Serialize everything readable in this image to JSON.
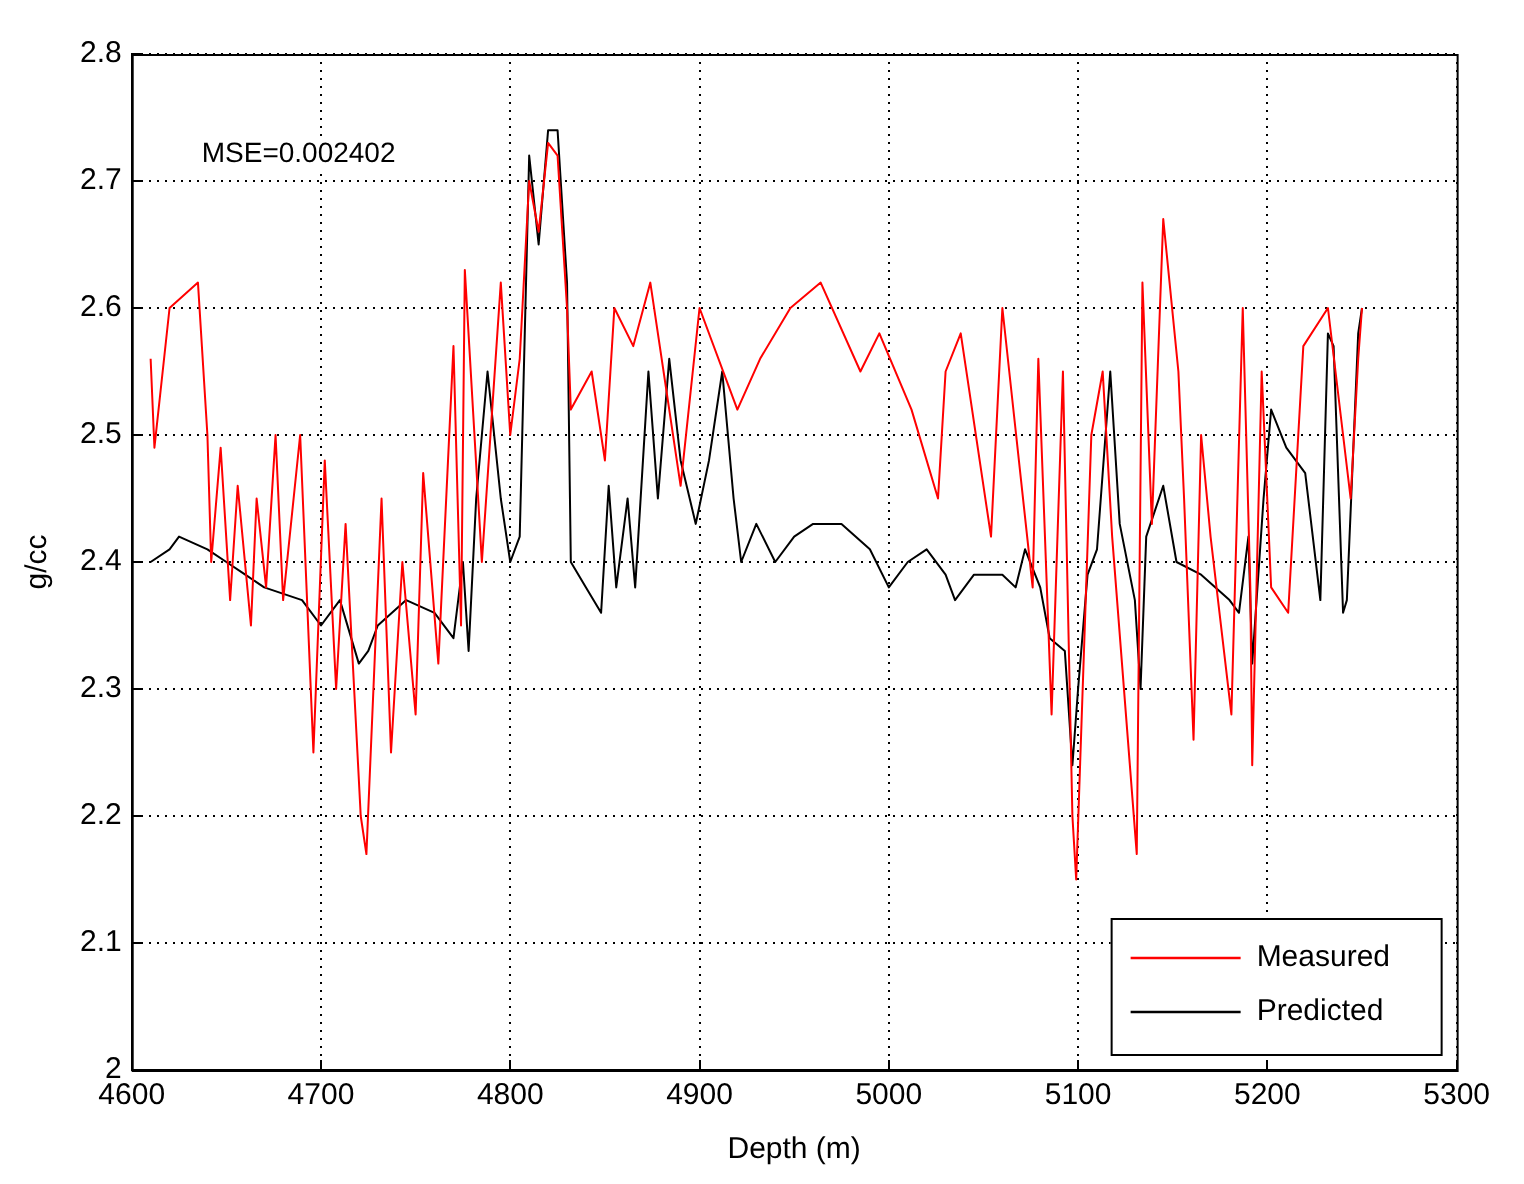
{
  "chart_data": {
    "type": "line",
    "xlabel": "Depth (m)",
    "ylabel": "g/cc",
    "annotations": [
      "MSE=0.002402"
    ],
    "xlim": [
      4600,
      5300
    ],
    "xticks": [
      4600,
      4700,
      4800,
      4900,
      5000,
      5100,
      5200,
      5300
    ],
    "ylim": [
      2,
      2.8
    ],
    "yticks": [
      2,
      2.1,
      2.2,
      2.3,
      2.4,
      2.5,
      2.6,
      2.7,
      2.8
    ],
    "grid": true,
    "legend": "bottom right",
    "line_style": "solid",
    "marker": "none",
    "series": [
      {
        "name": "Measured",
        "color": "#ff0000",
        "x": [
          4610,
          4612,
          4620,
          4635,
          4640,
          4642,
          4647,
          4652,
          4656,
          4663,
          4666,
          4671,
          4676,
          4680,
          4689,
          4696,
          4702,
          4708,
          4713,
          4721,
          4724,
          4732,
          4737,
          4743,
          4750,
          4754,
          4762,
          4770,
          4774,
          4776,
          4785,
          4795,
          4800,
          4805,
          4810,
          4815,
          4820,
          4825,
          4830,
          4832,
          4843,
          4850,
          4855,
          4865,
          4874,
          4890,
          4900,
          4920,
          4932,
          4948,
          4964,
          4985,
          4995,
          5012,
          5026,
          5030,
          5038,
          5054,
          5060,
          5076,
          5079,
          5086,
          5092,
          5097,
          5099,
          5107,
          5113,
          5118,
          5131,
          5134,
          5139,
          5145,
          5153,
          5156,
          5161,
          5165,
          5170,
          5181,
          5187,
          5191,
          5192,
          5197,
          5202,
          5211,
          5219,
          5232,
          5240,
          5244,
          5248,
          5250
        ],
        "values": [
          2.56,
          2.49,
          2.6,
          2.62,
          2.5,
          2.4,
          2.49,
          2.37,
          2.46,
          2.35,
          2.45,
          2.38,
          2.5,
          2.37,
          2.5,
          2.25,
          2.48,
          2.3,
          2.43,
          2.2,
          2.17,
          2.45,
          2.25,
          2.4,
          2.28,
          2.47,
          2.32,
          2.57,
          2.35,
          2.63,
          2.4,
          2.62,
          2.5,
          2.56,
          2.7,
          2.66,
          2.73,
          2.72,
          2.6,
          2.52,
          2.55,
          2.48,
          2.6,
          2.57,
          2.62,
          2.46,
          2.6,
          2.52,
          2.56,
          2.6,
          2.62,
          2.55,
          2.58,
          2.52,
          2.45,
          2.55,
          2.58,
          2.42,
          2.6,
          2.38,
          2.56,
          2.28,
          2.55,
          2.2,
          2.15,
          2.5,
          2.55,
          2.42,
          2.17,
          2.62,
          2.43,
          2.67,
          2.55,
          2.45,
          2.26,
          2.5,
          2.42,
          2.28,
          2.6,
          2.38,
          2.24,
          2.55,
          2.38,
          2.36,
          2.57,
          2.6,
          2.5,
          2.45,
          2.56,
          2.6
        ]
      },
      {
        "name": "Predicted",
        "color": "#000000",
        "x": [
          4610,
          4620,
          4625,
          4640,
          4650,
          4660,
          4670,
          4690,
          4700,
          4710,
          4720,
          4725,
          4730,
          4745,
          4760,
          4770,
          4775,
          4778,
          4782,
          4788,
          4795,
          4800,
          4805,
          4810,
          4815,
          4820,
          4825,
          4830,
          4832,
          4840,
          4848,
          4852,
          4856,
          4862,
          4866,
          4873,
          4878,
          4884,
          4890,
          4898,
          4905,
          4912,
          4918,
          4922,
          4930,
          4940,
          4950,
          4960,
          4975,
          4990,
          5000,
          5010,
          5020,
          5030,
          5035,
          5045,
          5060,
          5067,
          5072,
          5080,
          5085,
          5093,
          5097,
          5100,
          5105,
          5110,
          5117,
          5122,
          5130,
          5133,
          5136,
          5145,
          5152,
          5165,
          5180,
          5185,
          5190,
          5192,
          5198,
          5202,
          5210,
          5220,
          5228,
          5232,
          5235,
          5240,
          5242,
          5248,
          5250
        ],
        "values": [
          2.4,
          2.41,
          2.42,
          2.41,
          2.4,
          2.39,
          2.38,
          2.37,
          2.35,
          2.37,
          2.32,
          2.33,
          2.35,
          2.37,
          2.36,
          2.34,
          2.4,
          2.33,
          2.45,
          2.55,
          2.45,
          2.4,
          2.42,
          2.72,
          2.65,
          2.74,
          2.74,
          2.62,
          2.4,
          2.38,
          2.36,
          2.46,
          2.38,
          2.45,
          2.38,
          2.55,
          2.45,
          2.56,
          2.48,
          2.43,
          2.48,
          2.55,
          2.45,
          2.4,
          2.43,
          2.4,
          2.42,
          2.43,
          2.43,
          2.41,
          2.38,
          2.4,
          2.41,
          2.39,
          2.37,
          2.39,
          2.39,
          2.38,
          2.41,
          2.38,
          2.34,
          2.33,
          2.24,
          2.3,
          2.39,
          2.41,
          2.55,
          2.43,
          2.37,
          2.3,
          2.42,
          2.46,
          2.4,
          2.39,
          2.37,
          2.36,
          2.42,
          2.32,
          2.45,
          2.52,
          2.49,
          2.47,
          2.37,
          2.58,
          2.57,
          2.36,
          2.37,
          2.58,
          2.6
        ]
      }
    ]
  }
}
